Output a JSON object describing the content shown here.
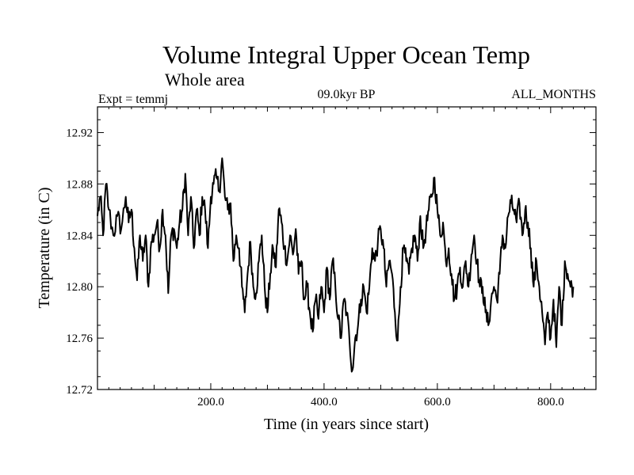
{
  "chart_data": {
    "type": "line",
    "title": "Volume Integral Upper Ocean Temp",
    "subtitle": "Whole area",
    "expt_label": "Expt = temmj",
    "period_label": "09.0kyr BP",
    "months_label": "ALL_MONTHS",
    "xlabel": "Time (in years since start)",
    "ylabel": "Temperature (in C)",
    "xlim": [
      0,
      880
    ],
    "ylim": [
      12.72,
      12.94
    ],
    "x_ticks": [
      200,
      400,
      600,
      800
    ],
    "x_tick_labels": [
      "200.0",
      "400.0",
      "600.0",
      "800.0"
    ],
    "y_ticks": [
      12.72,
      12.76,
      12.8,
      12.84,
      12.88,
      12.92
    ],
    "y_tick_labels": [
      "12.72",
      "12.76",
      "12.80",
      "12.84",
      "12.88",
      "12.92"
    ],
    "grid": false,
    "series": [
      {
        "name": "temmj",
        "color": "#000000",
        "anchors": [
          [
            0,
            12.855
          ],
          [
            5,
            12.87
          ],
          [
            10,
            12.84
          ],
          [
            15,
            12.88
          ],
          [
            20,
            12.86
          ],
          [
            28,
            12.84
          ],
          [
            35,
            12.855
          ],
          [
            42,
            12.845
          ],
          [
            50,
            12.87
          ],
          [
            55,
            12.85
          ],
          [
            60,
            12.86
          ],
          [
            65,
            12.83
          ],
          [
            70,
            12.805
          ],
          [
            75,
            12.84
          ],
          [
            80,
            12.82
          ],
          [
            85,
            12.84
          ],
          [
            90,
            12.8
          ],
          [
            95,
            12.835
          ],
          [
            100,
            12.84
          ],
          [
            105,
            12.85
          ],
          [
            110,
            12.83
          ],
          [
            115,
            12.86
          ],
          [
            120,
            12.84
          ],
          [
            125,
            12.795
          ],
          [
            130,
            12.84
          ],
          [
            135,
            12.845
          ],
          [
            140,
            12.83
          ],
          [
            145,
            12.85
          ],
          [
            150,
            12.86
          ],
          [
            155,
            12.888
          ],
          [
            160,
            12.84
          ],
          [
            165,
            12.87
          ],
          [
            170,
            12.83
          ],
          [
            175,
            12.86
          ],
          [
            180,
            12.84
          ],
          [
            185,
            12.87
          ],
          [
            190,
            12.86
          ],
          [
            195,
            12.83
          ],
          [
            200,
            12.87
          ],
          [
            205,
            12.88
          ],
          [
            210,
            12.885
          ],
          [
            215,
            12.875
          ],
          [
            220,
            12.9
          ],
          [
            225,
            12.87
          ],
          [
            230,
            12.86
          ],
          [
            235,
            12.865
          ],
          [
            240,
            12.82
          ],
          [
            245,
            12.84
          ],
          [
            250,
            12.83
          ],
          [
            255,
            12.8
          ],
          [
            260,
            12.78
          ],
          [
            265,
            12.81
          ],
          [
            270,
            12.835
          ],
          [
            275,
            12.8
          ],
          [
            280,
            12.795
          ],
          [
            285,
            12.82
          ],
          [
            290,
            12.84
          ],
          [
            295,
            12.8
          ],
          [
            300,
            12.78
          ],
          [
            305,
            12.81
          ],
          [
            310,
            12.83
          ],
          [
            315,
            12.815
          ],
          [
            320,
            12.86
          ],
          [
            325,
            12.85
          ],
          [
            330,
            12.83
          ],
          [
            335,
            12.82
          ],
          [
            340,
            12.84
          ],
          [
            345,
            12.825
          ],
          [
            350,
            12.845
          ],
          [
            355,
            12.81
          ],
          [
            360,
            12.82
          ],
          [
            365,
            12.79
          ],
          [
            370,
            12.8
          ],
          [
            375,
            12.78
          ],
          [
            380,
            12.765
          ],
          [
            385,
            12.79
          ],
          [
            390,
            12.775
          ],
          [
            395,
            12.8
          ],
          [
            400,
            12.78
          ],
          [
            405,
            12.815
          ],
          [
            410,
            12.79
          ],
          [
            415,
            12.82
          ],
          [
            420,
            12.8
          ],
          [
            425,
            12.775
          ],
          [
            430,
            12.76
          ],
          [
            435,
            12.79
          ],
          [
            440,
            12.78
          ],
          [
            445,
            12.757
          ],
          [
            450,
            12.735
          ],
          [
            455,
            12.76
          ],
          [
            460,
            12.77
          ],
          [
            465,
            12.79
          ],
          [
            470,
            12.8
          ],
          [
            475,
            12.78
          ],
          [
            480,
            12.8
          ],
          [
            485,
            12.83
          ],
          [
            490,
            12.82
          ],
          [
            495,
            12.835
          ],
          [
            500,
            12.845
          ],
          [
            505,
            12.83
          ],
          [
            510,
            12.8
          ],
          [
            515,
            12.82
          ],
          [
            520,
            12.81
          ],
          [
            525,
            12.78
          ],
          [
            530,
            12.758
          ],
          [
            535,
            12.8
          ],
          [
            540,
            12.83
          ],
          [
            545,
            12.82
          ],
          [
            550,
            12.81
          ],
          [
            555,
            12.83
          ],
          [
            560,
            12.84
          ],
          [
            565,
            12.82
          ],
          [
            570,
            12.855
          ],
          [
            575,
            12.83
          ],
          [
            580,
            12.845
          ],
          [
            585,
            12.86
          ],
          [
            590,
            12.87
          ],
          [
            595,
            12.885
          ],
          [
            600,
            12.86
          ],
          [
            605,
            12.84
          ],
          [
            610,
            12.85
          ],
          [
            615,
            12.82
          ],
          [
            620,
            12.83
          ],
          [
            625,
            12.81
          ],
          [
            630,
            12.79
          ],
          [
            635,
            12.8
          ],
          [
            640,
            12.815
          ],
          [
            645,
            12.8
          ],
          [
            650,
            12.82
          ],
          [
            655,
            12.8
          ],
          [
            660,
            12.825
          ],
          [
            665,
            12.84
          ],
          [
            670,
            12.82
          ],
          [
            675,
            12.8
          ],
          [
            680,
            12.8
          ],
          [
            685,
            12.78
          ],
          [
            690,
            12.77
          ],
          [
            695,
            12.79
          ],
          [
            700,
            12.8
          ],
          [
            705,
            12.79
          ],
          [
            710,
            12.81
          ],
          [
            715,
            12.84
          ],
          [
            720,
            12.83
          ],
          [
            725,
            12.855
          ],
          [
            730,
            12.865
          ],
          [
            735,
            12.86
          ],
          [
            740,
            12.85
          ],
          [
            745,
            12.865
          ],
          [
            750,
            12.84
          ],
          [
            755,
            12.86
          ],
          [
            760,
            12.85
          ],
          [
            765,
            12.83
          ],
          [
            770,
            12.8
          ],
          [
            775,
            12.82
          ],
          [
            780,
            12.8
          ],
          [
            785,
            12.78
          ],
          [
            790,
            12.755
          ],
          [
            795,
            12.78
          ],
          [
            800,
            12.76
          ],
          [
            805,
            12.79
          ],
          [
            810,
            12.753
          ],
          [
            815,
            12.8
          ],
          [
            820,
            12.77
          ],
          [
            825,
            12.82
          ],
          [
            830,
            12.81
          ],
          [
            835,
            12.8
          ],
          [
            840,
            12.8
          ]
        ],
        "line_width": 2
      }
    ]
  }
}
